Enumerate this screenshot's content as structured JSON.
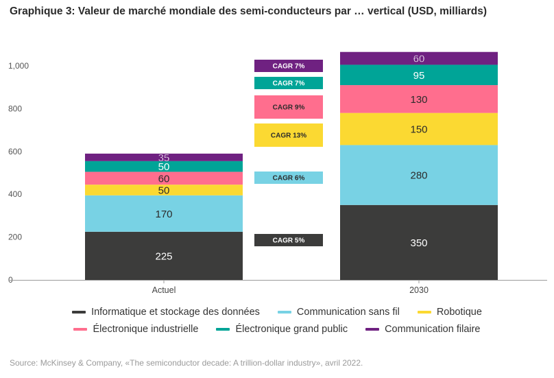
{
  "title": "Graphique 3: Valeur de marché mondiale des semi-conducteurs par … vertical (USD, milliards)",
  "source": "Source: McKinsey & Company, «The semiconductor decade: A trillion-dollar industry», avril 2022.",
  "colors": {
    "informatique": "#3c3c3b",
    "sans_fil": "#78d2e4",
    "robotique": "#fbd932",
    "industrielle": "#ff6e8e",
    "grand_public": "#00a497",
    "filaire": "#6f2181"
  },
  "legend": [
    {
      "name": "Informatique et stockage des données",
      "color": "#3c3c3b"
    },
    {
      "name": "Communication sans fil",
      "color": "#78d2e4"
    },
    {
      "name": "Robotique",
      "color": "#fbd932"
    },
    {
      "name": "Électronique industrielle",
      "color": "#ff6e8e"
    },
    {
      "name": "Électronique grand public",
      "color": "#00a497"
    },
    {
      "name": "Communication filaire",
      "color": "#6f2181"
    }
  ],
  "chart_data": {
    "type": "bar",
    "stacked": true,
    "title": "Graphique 3: Valeur de marché mondiale des semi-conducteurs par … vertical (USD, milliards)",
    "categories": [
      "Actuel",
      "2030"
    ],
    "ylim": [
      0,
      1000
    ],
    "yticks": [
      0,
      200,
      400,
      600,
      800,
      1000
    ],
    "ytick_labels": [
      "0",
      "200",
      "400",
      "600",
      "800",
      "1,000"
    ],
    "series": [
      {
        "name": "Informatique et stockage des données",
        "values": [
          225,
          350
        ],
        "labels": [
          "225",
          "350"
        ],
        "color": "#3c3c3b",
        "label_color": "#ffffff"
      },
      {
        "name": "Communication sans fil",
        "values": [
          170,
          280
        ],
        "labels": [
          "170",
          "280"
        ],
        "color": "#78d2e4",
        "label_color": "#2b2b2b"
      },
      {
        "name": "Robotique",
        "values": [
          50,
          150
        ],
        "labels": [
          "50",
          "150"
        ],
        "color": "#fbd932",
        "label_color": "#2b2b2b"
      },
      {
        "name": "Électronique industrielle",
        "values": [
          60,
          130
        ],
        "labels": [
          "60",
          "130"
        ],
        "color": "#ff6e8e",
        "label_color": "#2b2b2b"
      },
      {
        "name": "Électronique grand public",
        "values": [
          50,
          95
        ],
        "labels": [
          "50",
          "95"
        ],
        "color": "#00a497",
        "label_color": "#ffffff"
      },
      {
        "name": "Communication filaire",
        "values": [
          35,
          60
        ],
        "labels": [
          "35",
          "60"
        ],
        "color": "#6f2181",
        "label_color": "#ffffff"
      }
    ],
    "cagr": [
      {
        "series": "Communication filaire",
        "label": "CAGR 7%",
        "color": "#6f2181",
        "text_color": "#ffffff"
      },
      {
        "series": "Électronique grand public",
        "label": "CAGR 7%",
        "color": "#00a497",
        "text_color": "#ffffff"
      },
      {
        "series": "Électronique industrielle",
        "label": "CAGR 9%",
        "color": "#ff6e8e",
        "text_color": "#2b2b2b"
      },
      {
        "series": "Robotique",
        "label": "CAGR 13%",
        "color": "#fbd932",
        "text_color": "#2b2b2b"
      },
      {
        "series": "Communication sans fil",
        "label": "CAGR 6%",
        "color": "#78d2e4",
        "text_color": "#2b2b2b"
      },
      {
        "series": "Informatique et stockage des données",
        "label": "CAGR 5%",
        "color": "#3c3c3b",
        "text_color": "#ffffff"
      }
    ]
  }
}
